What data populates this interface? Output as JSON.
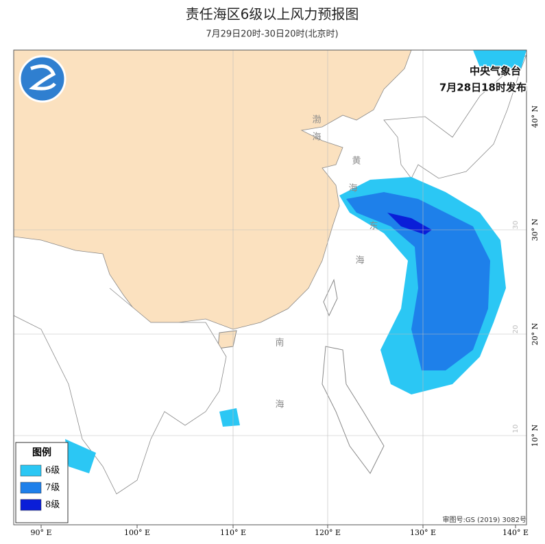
{
  "header": {
    "title": "责任海区6级以上风力预报图",
    "subtitle": "7月29日20时-30日20时(北京时)"
  },
  "issuer": {
    "name": "中央气象台",
    "time": "7月28日18时发布"
  },
  "legend": {
    "title": "图例",
    "items": [
      "6级",
      "7级",
      "8级"
    ]
  },
  "sea_labels": [
    "渤",
    "海",
    "黄",
    "海",
    "东",
    "海",
    "南",
    "海"
  ],
  "axes": {
    "lon_labels": [
      "90° E",
      "100° E",
      "110° E",
      "120° E",
      "130° E",
      "140° E"
    ],
    "lat_labels": [
      "40° N",
      "30° N",
      "20° N",
      "10° N"
    ],
    "grid_labels": [
      "30",
      "20",
      "10"
    ]
  },
  "footer": {
    "approval": "审图号:GS (2019) 3082号"
  }
}
